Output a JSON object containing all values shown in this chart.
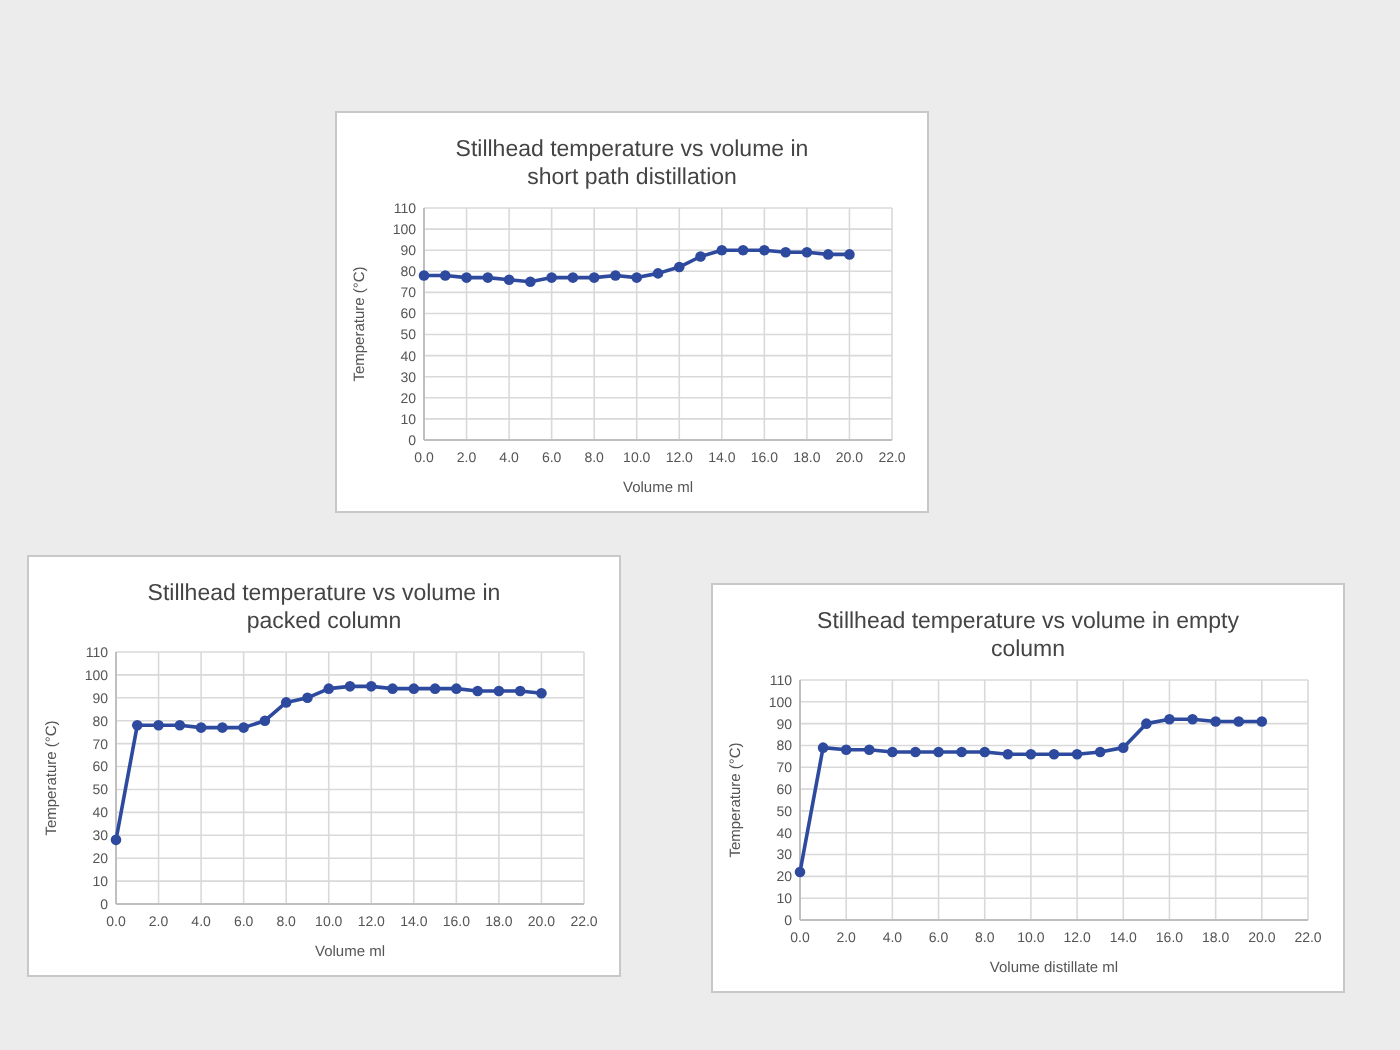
{
  "chart_data": [
    {
      "type": "line",
      "title": "Stillhead temperature vs volume in\nshort path distillation",
      "xlabel": "Volume ml",
      "ylabel": "Temperature (°C)",
      "x": [
        0,
        1,
        2,
        3,
        4,
        5,
        6,
        7,
        8,
        9,
        10,
        11,
        12,
        13,
        14,
        15,
        16,
        17,
        18,
        19,
        20
      ],
      "series": [
        {
          "color": "#2e4a9e",
          "values": [
            78,
            78,
            77,
            77,
            76,
            75,
            77,
            77,
            77,
            78,
            77,
            79,
            82,
            87,
            90,
            90,
            90,
            89,
            89,
            88,
            88
          ]
        }
      ],
      "xlim": [
        0,
        22
      ],
      "xticks": [
        {
          "value": 0,
          "label": "0.0"
        },
        {
          "value": 2,
          "label": "2.0"
        },
        {
          "value": 4,
          "label": "4.0"
        },
        {
          "value": 6,
          "label": "6.0"
        },
        {
          "value": 8,
          "label": "8.0"
        },
        {
          "value": 10,
          "label": "10.0"
        },
        {
          "value": 12,
          "label": "12.0"
        },
        {
          "value": 14,
          "label": "14.0"
        },
        {
          "value": 16,
          "label": "16.0"
        },
        {
          "value": 18,
          "label": "18.0"
        },
        {
          "value": 20,
          "label": "20.0"
        },
        {
          "value": 22,
          "label": "22.0"
        }
      ],
      "ylim": [
        0,
        110
      ],
      "yticks": [
        0,
        10,
        20,
        30,
        40,
        50,
        60,
        70,
        80,
        90,
        100,
        110
      ],
      "grid": true,
      "marker": "circle",
      "line_style": "solid"
    },
    {
      "type": "line",
      "title": "Stillhead temperature vs volume in\npacked column",
      "xlabel": "Volume ml",
      "ylabel": "Temperature (°C)",
      "x": [
        0,
        1,
        2,
        3,
        4,
        5,
        6,
        7,
        8,
        9,
        10,
        11,
        12,
        13,
        14,
        15,
        16,
        17,
        18,
        19,
        20
      ],
      "series": [
        {
          "color": "#2e4a9e",
          "values": [
            28,
            78,
            78,
            78,
            77,
            77,
            77,
            80,
            88,
            90,
            94,
            95,
            95,
            94,
            94,
            94,
            94,
            93,
            93,
            93,
            92
          ]
        }
      ],
      "xlim": [
        0,
        22
      ],
      "xticks": [
        {
          "value": 0,
          "label": "0.0"
        },
        {
          "value": 2,
          "label": "2.0"
        },
        {
          "value": 4,
          "label": "4.0"
        },
        {
          "value": 6,
          "label": "6.0"
        },
        {
          "value": 8,
          "label": "8.0"
        },
        {
          "value": 10,
          "label": "10.0"
        },
        {
          "value": 12,
          "label": "12.0"
        },
        {
          "value": 14,
          "label": "14.0"
        },
        {
          "value": 16,
          "label": "16.0"
        },
        {
          "value": 18,
          "label": "18.0"
        },
        {
          "value": 20,
          "label": "20.0"
        },
        {
          "value": 22,
          "label": "22.0"
        }
      ],
      "ylim": [
        0,
        110
      ],
      "yticks": [
        0,
        10,
        20,
        30,
        40,
        50,
        60,
        70,
        80,
        90,
        100,
        110
      ],
      "grid": true,
      "marker": "circle",
      "line_style": "solid"
    },
    {
      "type": "line",
      "title": "Stillhead temperature vs volume in empty\ncolumn",
      "xlabel": "Volume distillate ml",
      "ylabel": "Temperature (°C)",
      "x": [
        0,
        1,
        2,
        3,
        4,
        5,
        6,
        7,
        8,
        9,
        10,
        11,
        12,
        13,
        14,
        15,
        16,
        17,
        18,
        19,
        20
      ],
      "series": [
        {
          "color": "#2e4a9e",
          "values": [
            22,
            79,
            78,
            78,
            77,
            77,
            77,
            77,
            77,
            76,
            76,
            76,
            76,
            77,
            79,
            90,
            92,
            92,
            91,
            91,
            91
          ]
        }
      ],
      "xlim": [
        0,
        22
      ],
      "xticks": [
        {
          "value": 0,
          "label": "0.0"
        },
        {
          "value": 2,
          "label": "2.0"
        },
        {
          "value": 4,
          "label": "4.0"
        },
        {
          "value": 6,
          "label": "6.0"
        },
        {
          "value": 8,
          "label": "8.0"
        },
        {
          "value": 10,
          "label": "10.0"
        },
        {
          "value": 12,
          "label": "12.0"
        },
        {
          "value": 14,
          "label": "14.0"
        },
        {
          "value": 16,
          "label": "16.0"
        },
        {
          "value": 18,
          "label": "18.0"
        },
        {
          "value": 20,
          "label": "20.0"
        },
        {
          "value": 22,
          "label": "22.0"
        }
      ],
      "ylim": [
        0,
        110
      ],
      "yticks": [
        0,
        10,
        20,
        30,
        40,
        50,
        60,
        70,
        80,
        90,
        100,
        110
      ],
      "grid": true,
      "marker": "circle",
      "line_style": "solid"
    }
  ]
}
